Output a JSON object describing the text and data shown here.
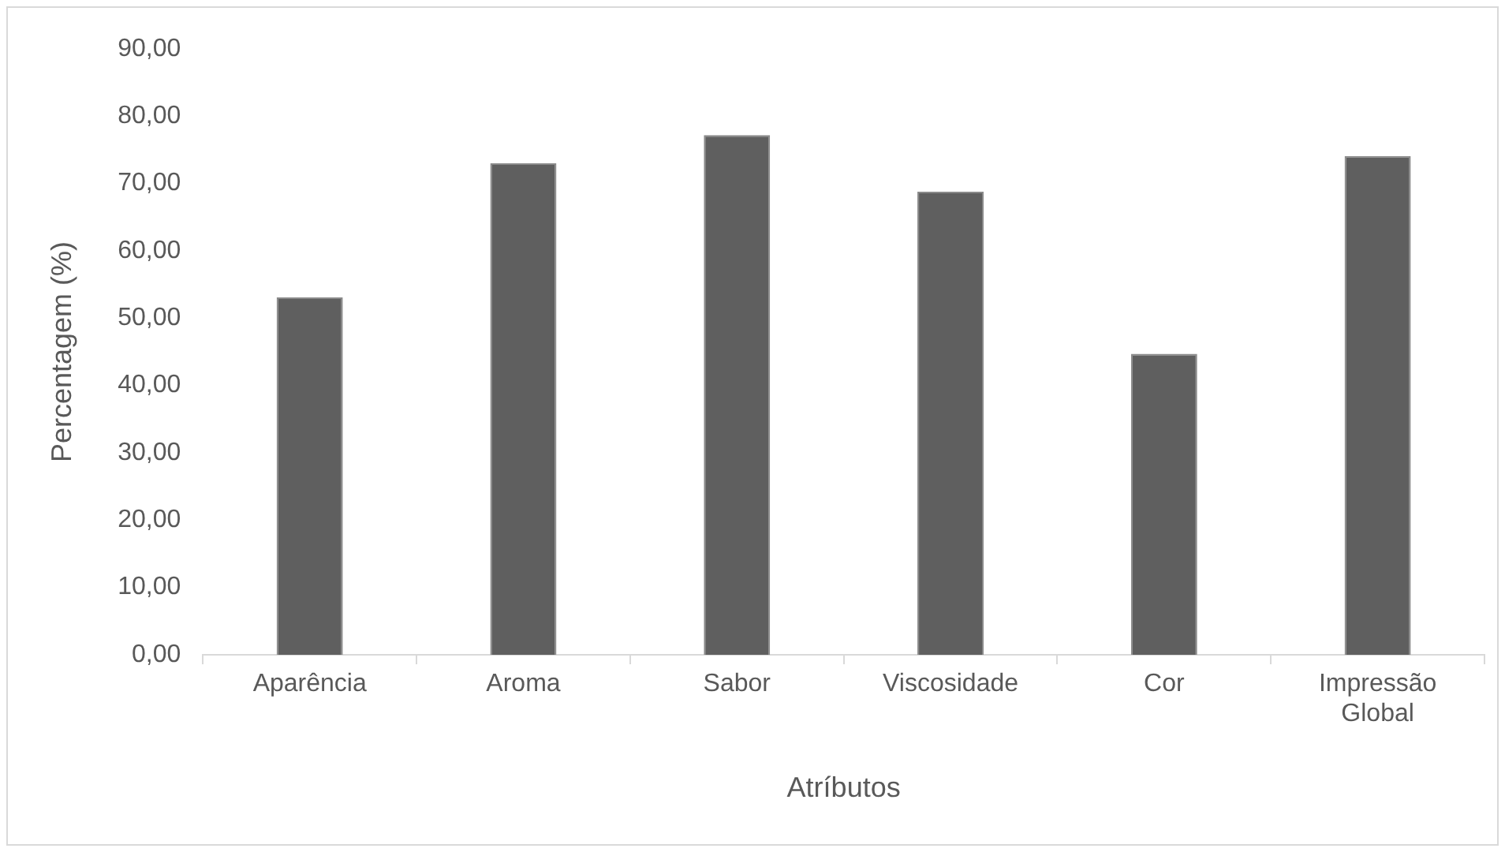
{
  "chart_data": {
    "type": "bar",
    "xlabel": "Atríbutos",
    "ylabel": "Percentagem (%)",
    "categories": [
      "Aparência",
      "Aroma",
      "Sabor",
      "Viscosidade",
      "Cor",
      "Impressão Global"
    ],
    "values": [
      53.1,
      73.0,
      77.2,
      68.8,
      44.7,
      74.1
    ],
    "color": "#5f5f5f",
    "ylim": [
      0,
      90
    ],
    "yticks": [
      {
        "value": 0,
        "label": "0,00"
      },
      {
        "value": 10,
        "label": "10,00"
      },
      {
        "value": 20,
        "label": "20,00"
      },
      {
        "value": 30,
        "label": "30,00"
      },
      {
        "value": 40,
        "label": "40,00"
      },
      {
        "value": 50,
        "label": "50,00"
      },
      {
        "value": 60,
        "label": "60,00"
      },
      {
        "value": 70,
        "label": "70,00"
      },
      {
        "value": 80,
        "label": "80,00"
      },
      {
        "value": 90,
        "label": "90,00"
      }
    ],
    "grid": false
  }
}
